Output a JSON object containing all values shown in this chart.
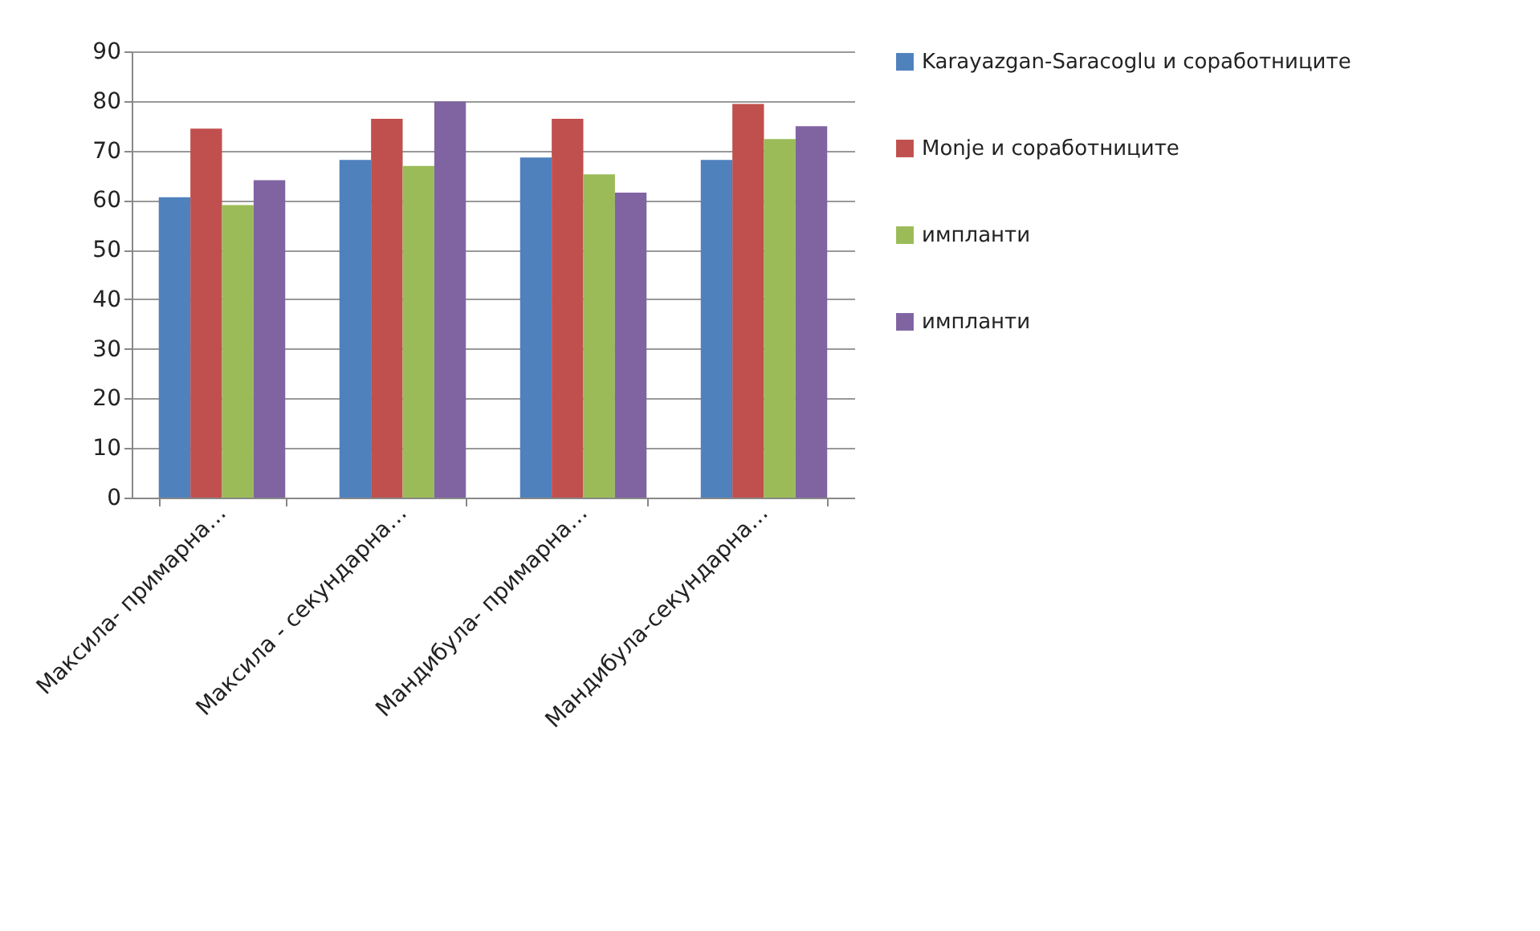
{
  "chart_data": {
    "type": "bar",
    "categories": [
      "Максила- примарна…",
      "Максила - секундарна…",
      "Мандибула- примарна…",
      "Мандибула-секундарна…"
    ],
    "series": [
      {
        "name": "Karayazgan-Saracoglu и соработниците",
        "color": "#4f81bd",
        "values": [
          60.6,
          68.1,
          68.6,
          68.1
        ]
      },
      {
        "name": "Monje и соработниците",
        "color": "#c0504d",
        "values": [
          74.4,
          76.4,
          76.4,
          79.4
        ]
      },
      {
        "name": "импланти",
        "color": "#9bbb59",
        "values": [
          59.0,
          66.9,
          65.2,
          72.3
        ]
      },
      {
        "name": "импланти",
        "color": "#8064a2",
        "values": [
          64.0,
          79.9,
          61.5,
          74.9
        ]
      }
    ],
    "ylim": [
      0,
      90
    ],
    "yticks": [
      0,
      10,
      20,
      30,
      40,
      50,
      60,
      70,
      80,
      90
    ],
    "grid": "y",
    "legend": "right"
  }
}
